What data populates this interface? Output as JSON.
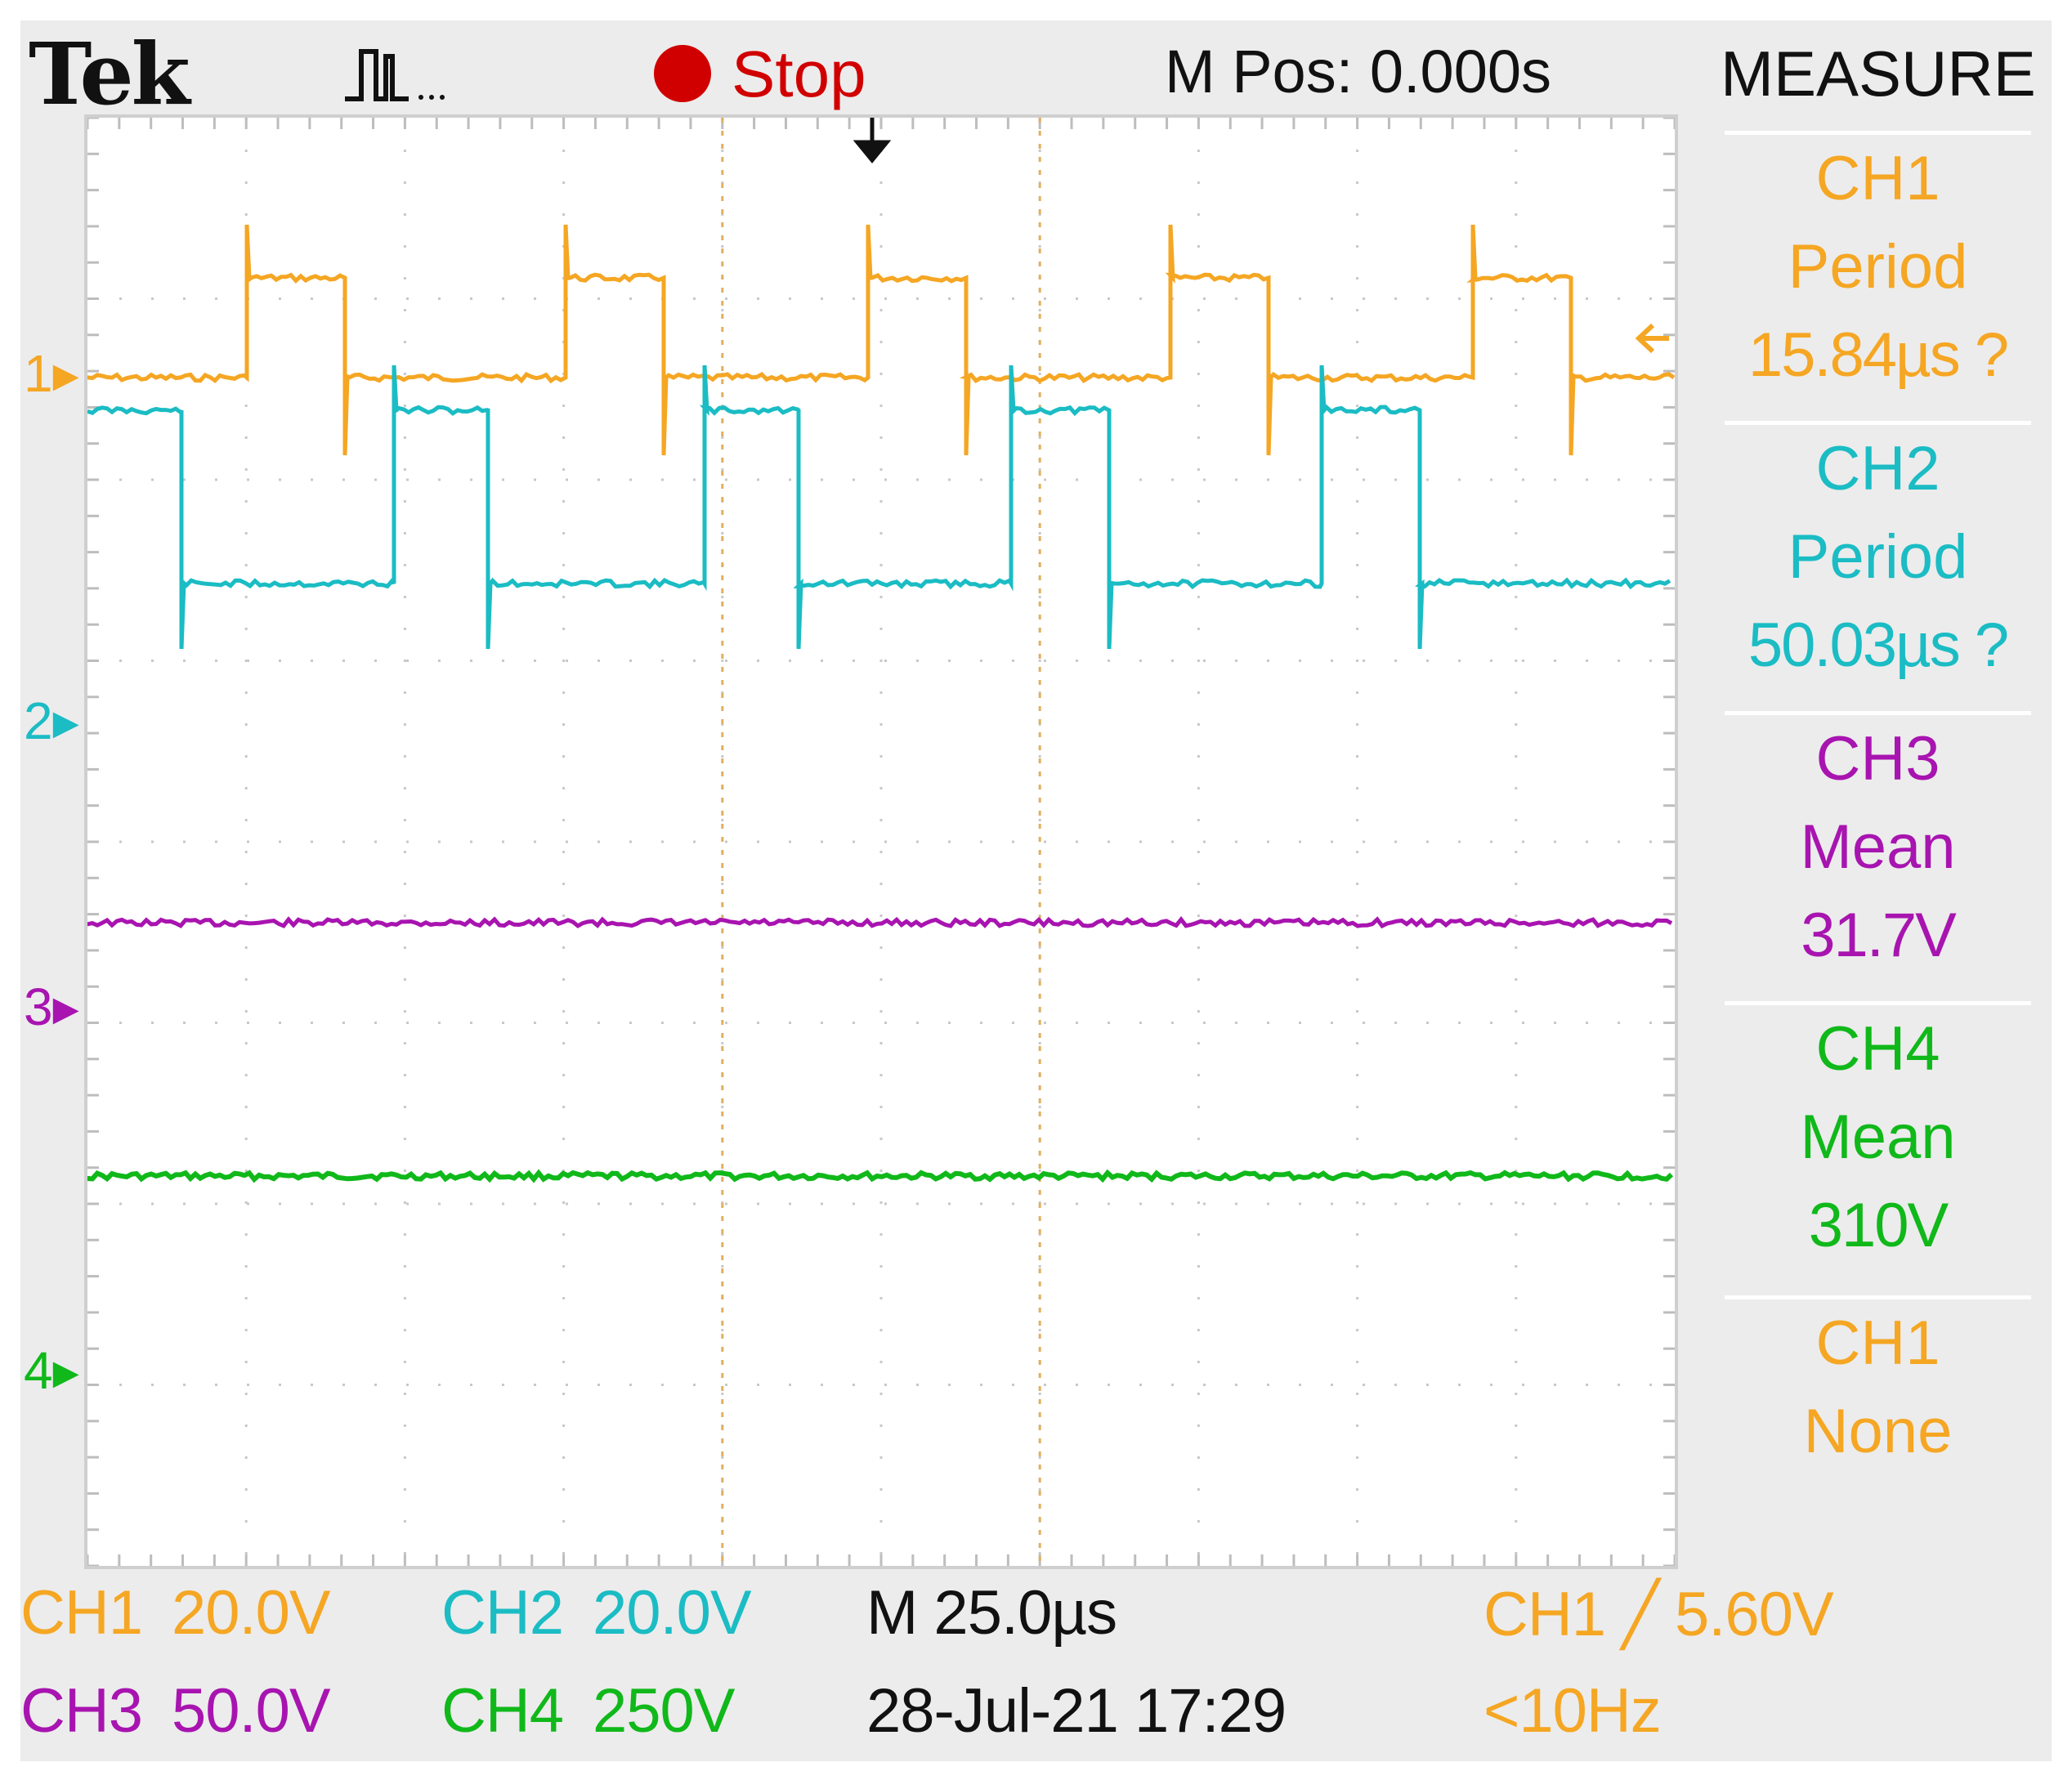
{
  "header": {
    "brand": "Tek",
    "acquire_icon": "pulse-waveform-icon",
    "run_state": "Stop",
    "run_state_color": "#d10000",
    "horizontal_position": "M Pos: 0.000s",
    "menu_title": "MEASURE"
  },
  "colors": {
    "ch1": "#f5a623",
    "ch2": "#1bbcc4",
    "ch3": "#a814b0",
    "ch4": "#10b81a"
  },
  "channel_markers": [
    "1",
    "2",
    "3",
    "4"
  ],
  "measurements": [
    {
      "channel": "CH1",
      "type": "Period",
      "value": "15.84µs ?"
    },
    {
      "channel": "CH2",
      "type": "Period",
      "value": "50.03µs ?"
    },
    {
      "channel": "CH3",
      "type": "Mean",
      "value": "31.7V"
    },
    {
      "channel": "CH4",
      "type": "Mean",
      "value": "310V"
    },
    {
      "channel": "CH1",
      "type": "None",
      "value": ""
    }
  ],
  "footer": {
    "ch1_label": "CH1",
    "ch1_scale": "20.0V",
    "ch2_label": "CH2",
    "ch2_scale": "20.0V",
    "ch3_label": "CH3",
    "ch3_scale": "50.0V",
    "ch4_label": "CH4",
    "ch4_scale": "250V",
    "timebase": "M 25.0µs",
    "date_time": "28-Jul-21 17:29",
    "trigger": "CH1 ╱ 5.60V",
    "frequency": "<10Hz"
  }
}
